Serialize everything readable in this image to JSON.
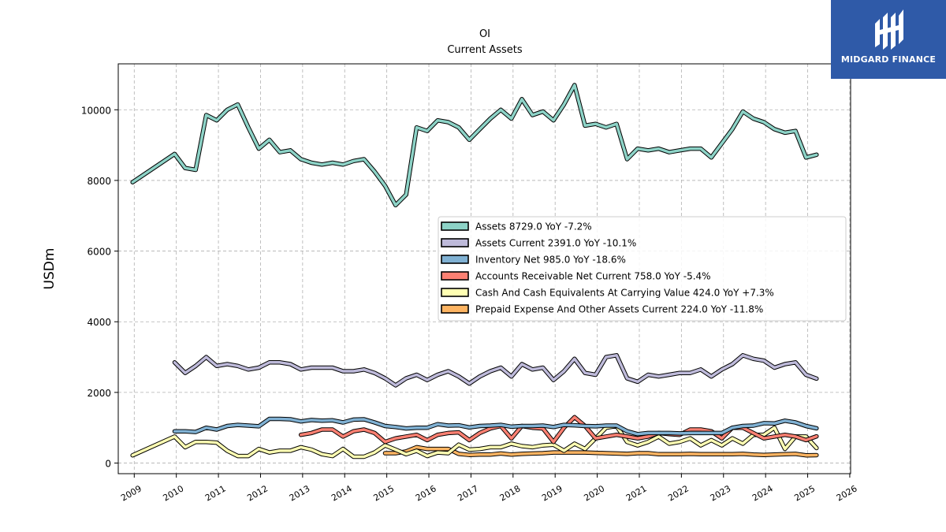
{
  "brand": {
    "name": "MIDGARD FINANCE",
    "logo_icon": "midgard-logo-icon",
    "color": "#2f5aa8"
  },
  "chart_data": {
    "type": "line",
    "title": "OI",
    "subtitle": "Current  Assets",
    "xlabel": "",
    "ylabel": "USDm",
    "xlim": [
      2008.62,
      2026.02
    ],
    "ylim": [
      -300,
      11300
    ],
    "yticks": [
      0,
      2000,
      4000,
      6000,
      8000,
      10000
    ],
    "xticks": [
      "2009",
      "2010",
      "2011",
      "2012",
      "2013",
      "2014",
      "2015",
      "2016",
      "2017",
      "2018",
      "2019",
      "2020",
      "2021",
      "2022",
      "2023",
      "2024",
      "2025",
      "2026"
    ],
    "grid": true,
    "legend_position": "center-right",
    "series": [
      {
        "name": "Assets  8729.0 YoY -7.2%",
        "color": "#8dd3c7",
        "x": [
          2008.96,
          2009.96,
          2010.21,
          2010.46,
          2010.71,
          2010.96,
          2011.21,
          2011.46,
          2011.71,
          2011.96,
          2012.21,
          2012.46,
          2012.71,
          2012.96,
          2013.21,
          2013.46,
          2013.71,
          2013.96,
          2014.21,
          2014.46,
          2014.71,
          2014.96,
          2015.21,
          2015.46,
          2015.71,
          2015.96,
          2016.21,
          2016.46,
          2016.71,
          2016.96,
          2017.21,
          2017.46,
          2017.71,
          2017.96,
          2018.21,
          2018.46,
          2018.71,
          2018.96,
          2019.21,
          2019.46,
          2019.71,
          2019.96,
          2020.21,
          2020.46,
          2020.71,
          2020.96,
          2021.21,
          2021.46,
          2021.71,
          2021.96,
          2022.21,
          2022.46,
          2022.71,
          2022.96,
          2023.21,
          2023.46,
          2023.71,
          2023.96,
          2024.21,
          2024.46,
          2024.71,
          2024.96,
          2025.21
        ],
        "values": [
          7950,
          8750,
          8350,
          8300,
          9850,
          9700,
          10000,
          10150,
          9500,
          8900,
          9150,
          8800,
          8850,
          8600,
          8500,
          8450,
          8500,
          8450,
          8550,
          8600,
          8250,
          7850,
          7300,
          7600,
          9500,
          9400,
          9700,
          9650,
          9500,
          9150,
          9450,
          9750,
          10000,
          9750,
          10300,
          9850,
          9950,
          9700,
          10150,
          10700,
          9550,
          9600,
          9500,
          9600,
          8600,
          8900,
          8850,
          8900,
          8800,
          8850,
          8900,
          8900,
          8650,
          9050,
          9450,
          9950,
          9750,
          9650,
          9450,
          9350,
          9400,
          8650,
          8729
        ]
      },
      {
        "name": "Assets Current  2391.0 YoY -10.1%",
        "color": "#bebada",
        "x": [
          2009.96,
          2010.21,
          2010.46,
          2010.71,
          2010.96,
          2011.21,
          2011.46,
          2011.71,
          2011.96,
          2012.21,
          2012.46,
          2012.71,
          2012.96,
          2013.21,
          2013.46,
          2013.71,
          2013.96,
          2014.21,
          2014.46,
          2014.71,
          2014.96,
          2015.21,
          2015.46,
          2015.71,
          2015.96,
          2016.21,
          2016.46,
          2016.71,
          2016.96,
          2017.21,
          2017.46,
          2017.71,
          2017.96,
          2018.21,
          2018.46,
          2018.71,
          2018.96,
          2019.21,
          2019.46,
          2019.71,
          2019.96,
          2020.21,
          2020.46,
          2020.71,
          2020.96,
          2021.21,
          2021.46,
          2021.71,
          2021.96,
          2022.21,
          2022.46,
          2022.71,
          2022.96,
          2023.21,
          2023.46,
          2023.71,
          2023.96,
          2024.21,
          2024.46,
          2024.71,
          2024.96,
          2025.21
        ],
        "values": [
          2850,
          2550,
          2750,
          3000,
          2750,
          2800,
          2750,
          2650,
          2700,
          2850,
          2850,
          2800,
          2650,
          2700,
          2700,
          2700,
          2600,
          2600,
          2650,
          2550,
          2400,
          2200,
          2400,
          2500,
          2350,
          2500,
          2600,
          2450,
          2250,
          2450,
          2600,
          2700,
          2450,
          2800,
          2650,
          2700,
          2350,
          2600,
          2950,
          2550,
          2500,
          3000,
          3050,
          2400,
          2300,
          2500,
          2450,
          2500,
          2550,
          2550,
          2650,
          2450,
          2650,
          2800,
          3050,
          2950,
          2900,
          2700,
          2800,
          2850,
          2500,
          2391
        ]
      },
      {
        "name": "Inventory Net  985.0 YoY -18.6%",
        "color": "#80b1d3",
        "x": [
          2009.96,
          2010.21,
          2010.46,
          2010.71,
          2010.96,
          2011.21,
          2011.46,
          2011.71,
          2011.96,
          2012.21,
          2012.46,
          2012.71,
          2012.96,
          2013.21,
          2013.46,
          2013.71,
          2013.96,
          2014.21,
          2014.46,
          2014.71,
          2014.96,
          2015.21,
          2015.46,
          2015.71,
          2015.96,
          2016.21,
          2016.46,
          2016.71,
          2016.96,
          2017.21,
          2017.46,
          2017.71,
          2017.96,
          2018.21,
          2018.46,
          2018.71,
          2018.96,
          2019.21,
          2019.46,
          2019.71,
          2019.96,
          2020.21,
          2020.46,
          2020.71,
          2020.96,
          2021.21,
          2021.46,
          2021.71,
          2021.96,
          2022.21,
          2022.46,
          2022.71,
          2022.96,
          2023.21,
          2023.46,
          2023.71,
          2023.96,
          2024.21,
          2024.46,
          2024.71,
          2024.96,
          2025.21
        ],
        "values": [
          900,
          900,
          880,
          1000,
          950,
          1050,
          1080,
          1060,
          1040,
          1250,
          1250,
          1240,
          1180,
          1220,
          1200,
          1210,
          1150,
          1230,
          1240,
          1150,
          1050,
          1020,
          980,
          1000,
          1000,
          1100,
          1060,
          1070,
          1010,
          1050,
          1060,
          1080,
          1030,
          1050,
          1050,
          1060,
          1020,
          1080,
          1070,
          1050,
          1040,
          1060,
          1060,
          900,
          820,
          850,
          850,
          850,
          840,
          850,
          850,
          850,
          850,
          1000,
          1050,
          1060,
          1130,
          1120,
          1200,
          1150,
          1050,
          985
        ]
      },
      {
        "name": "Accounts Receivable Net Current  758.0 YoY -5.4%",
        "color": "#fb8072",
        "x": [
          2012.96,
          2013.21,
          2013.46,
          2013.71,
          2013.96,
          2014.21,
          2014.46,
          2014.71,
          2014.96,
          2015.21,
          2015.46,
          2015.71,
          2015.96,
          2016.21,
          2016.46,
          2016.71,
          2016.96,
          2017.21,
          2017.46,
          2017.71,
          2017.96,
          2018.21,
          2018.46,
          2018.71,
          2018.96,
          2019.21,
          2019.46,
          2019.71,
          2019.96,
          2020.21,
          2020.46,
          2020.71,
          2020.96,
          2021.21,
          2021.46,
          2021.71,
          2021.96,
          2022.21,
          2022.46,
          2022.71,
          2022.96,
          2023.21,
          2023.46,
          2023.71,
          2023.96,
          2024.21,
          2024.46,
          2024.71,
          2024.96,
          2025.21
        ],
        "values": [
          800,
          850,
          950,
          950,
          750,
          900,
          950,
          850,
          600,
          700,
          750,
          800,
          650,
          800,
          850,
          870,
          650,
          850,
          980,
          1050,
          700,
          1050,
          1000,
          980,
          600,
          1000,
          1300,
          1050,
          700,
          750,
          800,
          750,
          700,
          750,
          850,
          820,
          800,
          950,
          950,
          900,
          700,
          1000,
          1000,
          850,
          700,
          750,
          800,
          750,
          650,
          758
        ]
      },
      {
        "name": "Cash And Cash Equivalents At Carrying Value  424.0 YoY +7.3%",
        "color": "#ffffb3",
        "x": [
          2008.96,
          2009.96,
          2010.21,
          2010.46,
          2010.71,
          2010.96,
          2011.21,
          2011.46,
          2011.71,
          2011.96,
          2012.21,
          2012.46,
          2012.71,
          2012.96,
          2013.21,
          2013.46,
          2013.71,
          2013.96,
          2014.21,
          2014.46,
          2014.71,
          2014.96,
          2015.21,
          2015.46,
          2015.71,
          2015.96,
          2016.21,
          2016.46,
          2016.71,
          2016.96,
          2017.21,
          2017.46,
          2017.71,
          2017.96,
          2018.21,
          2018.46,
          2018.71,
          2018.96,
          2019.21,
          2019.46,
          2019.71,
          2019.96,
          2020.21,
          2020.46,
          2020.71,
          2020.96,
          2021.21,
          2021.46,
          2021.71,
          2021.96,
          2022.21,
          2022.46,
          2022.71,
          2022.96,
          2023.21,
          2023.46,
          2023.71,
          2023.96,
          2024.21,
          2024.46,
          2024.71,
          2024.96,
          2025.21
        ],
        "values": [
          220,
          750,
          450,
          600,
          600,
          580,
          350,
          200,
          200,
          400,
          300,
          350,
          350,
          450,
          380,
          250,
          200,
          400,
          180,
          180,
          300,
          500,
          380,
          250,
          350,
          200,
          300,
          280,
          520,
          380,
          400,
          450,
          450,
          550,
          480,
          450,
          500,
          520,
          350,
          550,
          400,
          700,
          1000,
          1050,
          600,
          500,
          600,
          750,
          550,
          600,
          700,
          500,
          650,
          500,
          700,
          550,
          800,
          800,
          1000,
          400,
          750,
          750,
          424
        ]
      },
      {
        "name": "Prepaid Expense And Other Assets Current  224.0 YoY -11.8%",
        "color": "#fdb462",
        "x": [
          2014.96,
          2015.21,
          2015.46,
          2015.71,
          2015.96,
          2016.21,
          2016.46,
          2016.71,
          2016.96,
          2017.21,
          2017.46,
          2017.71,
          2017.96,
          2018.21,
          2018.46,
          2018.71,
          2018.96,
          2019.21,
          2019.46,
          2019.71,
          2019.96,
          2020.21,
          2020.46,
          2020.71,
          2020.96,
          2021.21,
          2021.46,
          2021.71,
          2021.96,
          2022.21,
          2022.46,
          2022.71,
          2022.96,
          2023.21,
          2023.46,
          2023.71,
          2023.96,
          2024.21,
          2024.46,
          2024.71,
          2024.96,
          2025.21
        ],
        "values": [
          280,
          280,
          330,
          450,
          400,
          400,
          400,
          260,
          230,
          240,
          240,
          270,
          240,
          260,
          270,
          280,
          300,
          300,
          300,
          300,
          290,
          280,
          270,
          260,
          280,
          280,
          250,
          250,
          250,
          260,
          250,
          250,
          250,
          250,
          260,
          240,
          230,
          240,
          250,
          260,
          220,
          224
        ]
      }
    ]
  }
}
